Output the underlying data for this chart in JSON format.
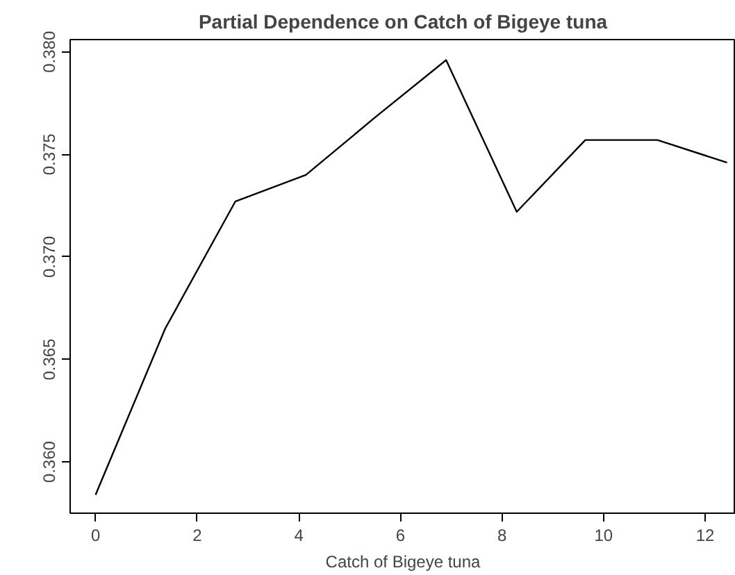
{
  "chart_data": {
    "type": "line",
    "title": "Partial Dependence on Catch of Bigeye tuna",
    "xlabel": "Catch of Bigeye tuna",
    "x": [
      0,
      1.37,
      2.75,
      4.14,
      5.5,
      6.9,
      8.29,
      9.64,
      11.06,
      12.43
    ],
    "series": [
      {
        "color": "#000000",
        "values": [
          0.3584,
          0.3665,
          0.3727,
          0.374,
          0.3768,
          0.3796,
          0.3722,
          0.3757,
          0.3757,
          0.3746
        ]
      }
    ],
    "xlim": [
      -0.5,
      12.6
    ],
    "ylim": [
      0.3575,
      0.3806
    ],
    "xticks": [
      0,
      2,
      4,
      6,
      8,
      10,
      12
    ],
    "yticks": [
      {
        "value": 0.36,
        "label": "0.360"
      },
      {
        "value": 0.365,
        "label": "0.365"
      },
      {
        "value": 0.37,
        "label": "0.370"
      },
      {
        "value": 0.375,
        "label": "0.375"
      },
      {
        "value": 0.38,
        "label": "0.380"
      }
    ],
    "grid": false,
    "marker": "none",
    "line_style": "solid"
  }
}
